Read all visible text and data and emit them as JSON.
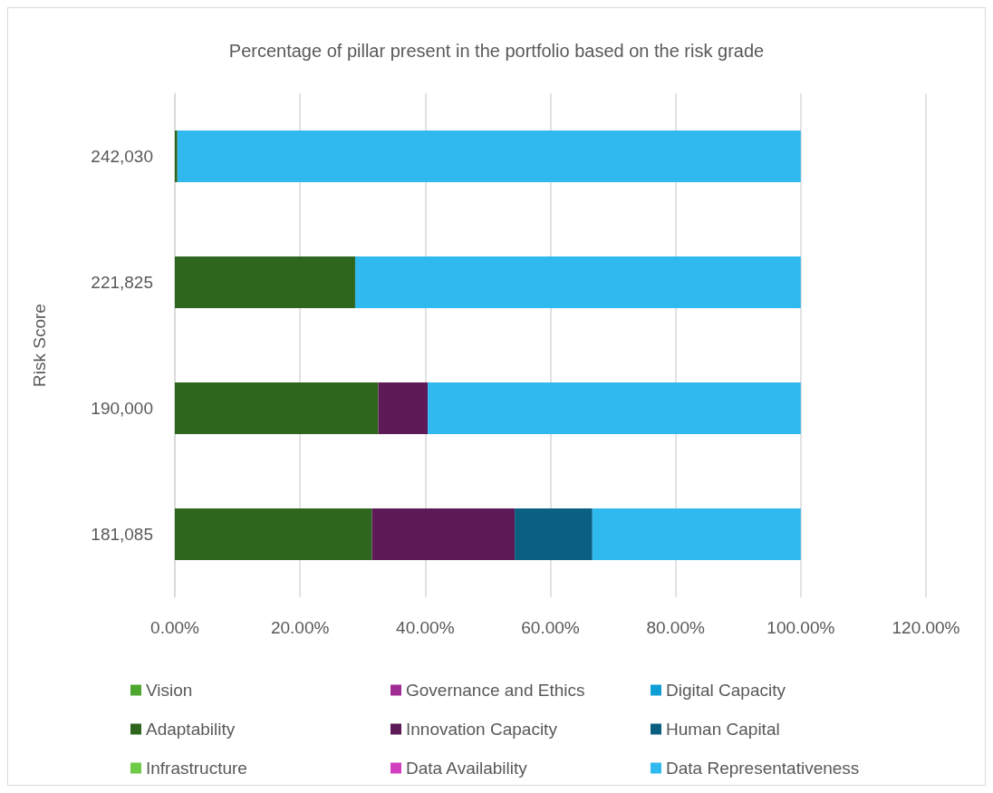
{
  "chart_data": {
    "type": "bar",
    "orientation": "horizontal",
    "stacked": true,
    "title": "Percentage of pillar present in the portfolio based on the risk grade",
    "ylabel": "Risk Score",
    "categories": [
      "242,030",
      "221,825",
      "190,000",
      "181,085"
    ],
    "series": [
      {
        "name": "Vision",
        "color": "#4ea72e",
        "values": [
          0,
          0,
          0,
          0
        ]
      },
      {
        "name": "Governance and Ethics",
        "color": "#a02b93",
        "values": [
          0,
          0,
          0,
          0
        ]
      },
      {
        "name": "Digital Capacity",
        "color": "#0f9ed5",
        "values": [
          0,
          0,
          0,
          0
        ]
      },
      {
        "name": "Adaptability",
        "color": "#2e661d",
        "values": [
          0.4,
          28.8,
          32.5,
          31.5
        ]
      },
      {
        "name": "Innovation Capacity",
        "color": "#5e1a57",
        "values": [
          0,
          0,
          7.9,
          22.8
        ]
      },
      {
        "name": "Human Capital",
        "color": "#0b5f80",
        "values": [
          0,
          0,
          0,
          12.4
        ]
      },
      {
        "name": "Infrastructure",
        "color": "#6dcb47",
        "values": [
          0,
          0,
          0,
          0
        ]
      },
      {
        "name": "Data Availability",
        "color": "#d13fbf",
        "values": [
          0,
          0,
          0,
          0
        ]
      },
      {
        "name": "Data Representativeness",
        "color": "#2fb9ee",
        "values": [
          99.6,
          71.2,
          59.6,
          33.3
        ]
      }
    ],
    "xlim": [
      0,
      120
    ],
    "xticks": [
      {
        "value": 0,
        "label": "0.00%"
      },
      {
        "value": 20,
        "label": "20.00%"
      },
      {
        "value": 40,
        "label": "40.00%"
      },
      {
        "value": 60,
        "label": "60.00%"
      },
      {
        "value": 80,
        "label": "80.00%"
      },
      {
        "value": 100,
        "label": "100.00%"
      },
      {
        "value": 120,
        "label": "120.00%"
      }
    ],
    "grid": "x",
    "legend": "bottom"
  }
}
